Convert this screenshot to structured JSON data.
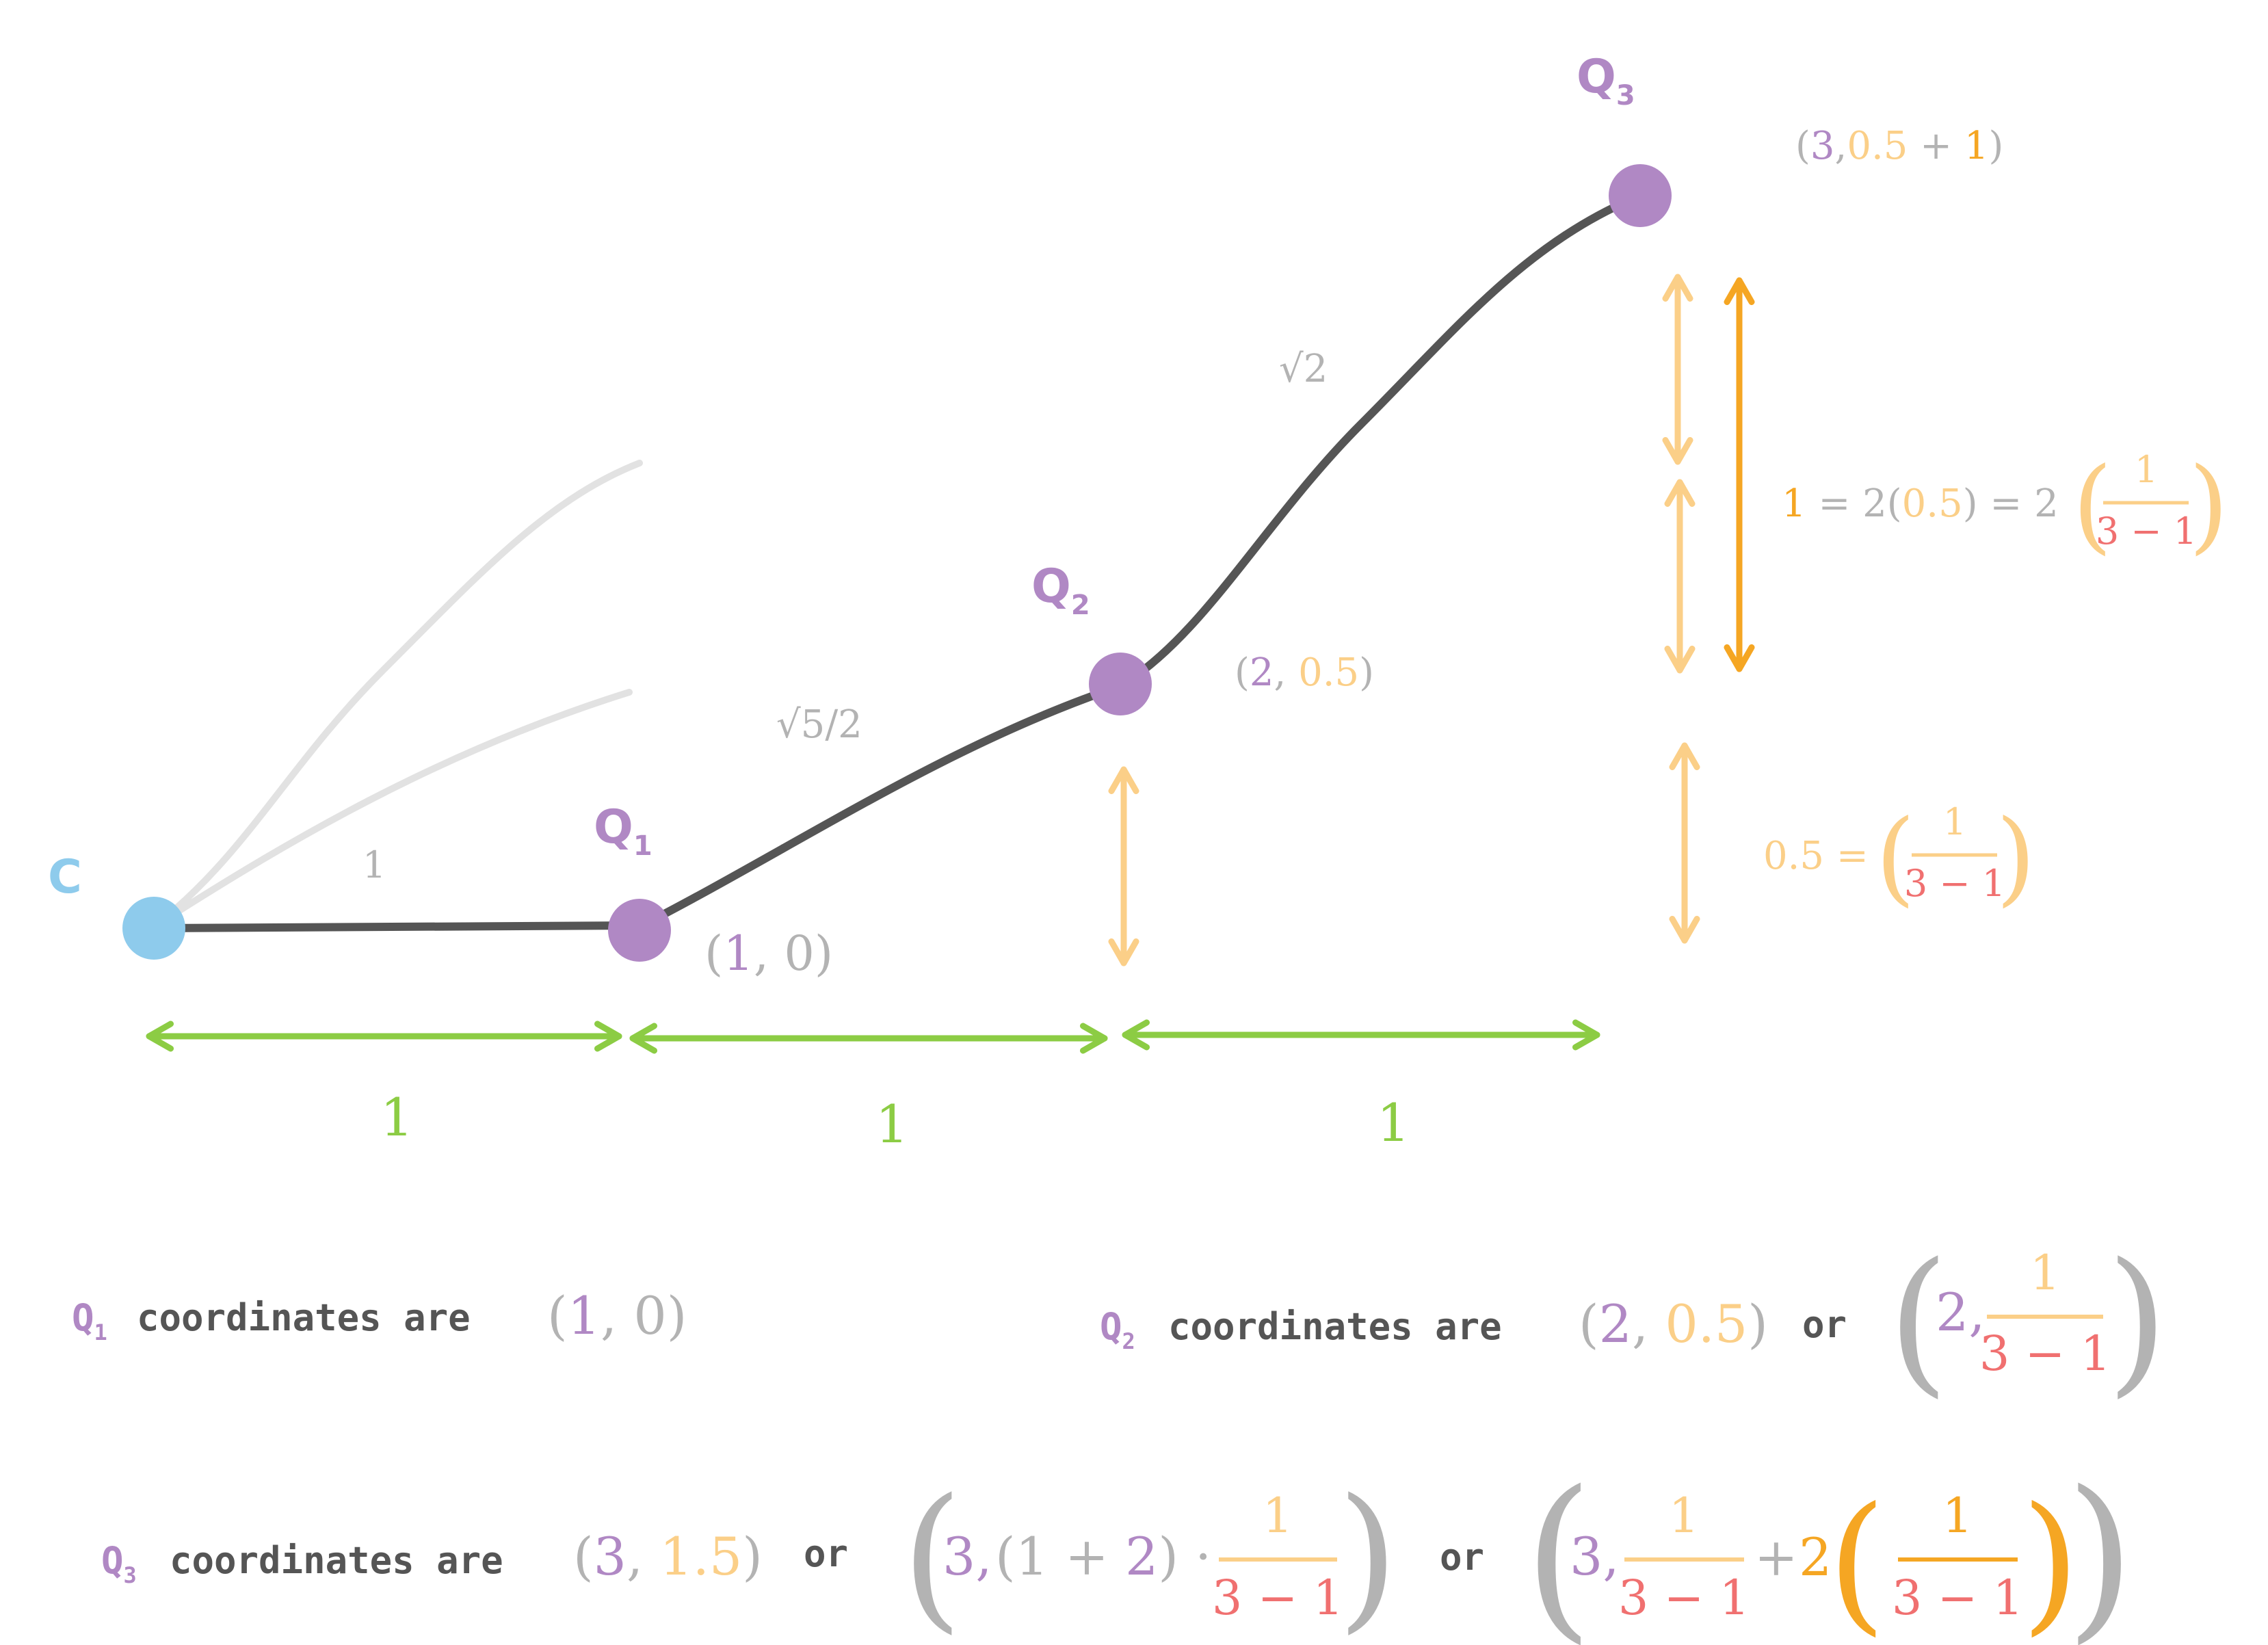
{
  "colors": {
    "purple": "#b088c4",
    "gray": "#b3b3b3",
    "dark": "#555555",
    "green": "#8ccc44",
    "peach": "#fbcf88",
    "orange": "#f5a623",
    "red": "#f07070",
    "blue": "#8ecbec",
    "light": "#e2e2e2"
  },
  "points": {
    "c": {
      "label": "C"
    },
    "q1": {
      "label": "Q",
      "sub": "1",
      "coord_open": "(",
      "coord_x": "1",
      "coord_sep": ", ",
      "coord_y": "0",
      "coord_close": ")"
    },
    "q2": {
      "label": "Q",
      "sub": "2",
      "coord_open": "(",
      "coord_x": "2",
      "coord_sep": ", ",
      "coord_y": "0.5",
      "coord_close": ")"
    },
    "q3": {
      "label": "Q",
      "sub": "3",
      "coord_open": "(",
      "coord_x": "3",
      "coord_sep": ",",
      "coord_y": "0.5",
      "coord_plus": " + ",
      "coord_one": "1",
      "coord_close": ")"
    }
  },
  "segments": {
    "cq1": "1",
    "q1q2": "√5/2",
    "q2q3": "√2"
  },
  "spacing": [
    "1",
    "1",
    "1"
  ],
  "right_eq": {
    "upper": {
      "one": "1",
      "eq1": " = 2",
      "p_open": "(",
      "half": "0.5",
      "p_close": ")",
      "eq2": " = 2",
      "num": "1",
      "den": "3 − 1"
    },
    "lower": {
      "half": "0.5",
      "eq": " =",
      "num": "1",
      "den": "3 − 1"
    }
  },
  "captions": {
    "q1": {
      "q": "Q",
      "sub": "1",
      "text": "coordinates are",
      "open": "(",
      "x": "1",
      "sep": ", ",
      "y": "0",
      "close": ")"
    },
    "q2": {
      "q": "Q",
      "sub": "2",
      "text": "coordinates are",
      "open": "(",
      "x": "2",
      "sep": ", ",
      "y": "0.5",
      "close": ")",
      "or": "or",
      "alt_x": "2,",
      "alt_num": "1",
      "alt_den": "3 − 1"
    },
    "q3": {
      "q": "Q",
      "sub": "3",
      "text": "coordinates are",
      "open": "(",
      "x": "3",
      "sep": ", ",
      "y": "1.5",
      "close": ")",
      "or1": "or",
      "alt1_x": "3,",
      "alt1_mid": "(1 + ",
      "alt1_two": "2",
      "alt1_end": ") ·",
      "alt1_num": "1",
      "alt1_den": "3 − 1",
      "or2": "or",
      "alt2_x": "3,",
      "alt2_num": "1",
      "alt2_den": "3 − 1",
      "alt2_plus": "+",
      "alt2_two": "2",
      "alt2_num2": "1",
      "alt2_den2": "3 − 1"
    }
  }
}
